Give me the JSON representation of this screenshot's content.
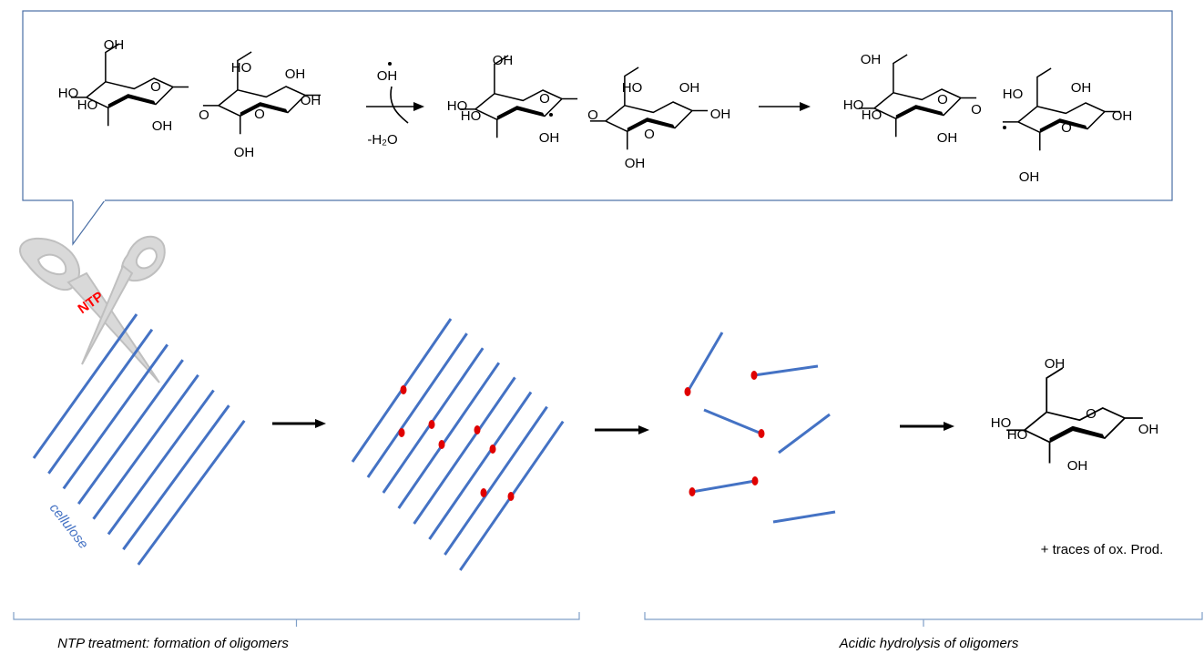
{
  "scheme": {
    "molecule_1": [
      "OH",
      "HO",
      "HO",
      "O",
      "OH",
      "O",
      "HO",
      "OH",
      "O",
      "OH",
      "OH"
    ],
    "reagent": {
      "radical": "OH",
      "loss": "-H₂O"
    },
    "molecule_2": [
      "OH",
      "HO",
      "HO",
      "O",
      "OH",
      "O",
      "HO",
      "OH",
      "O",
      "OH",
      "OH"
    ],
    "molecule_3": [
      "OH",
      "HO",
      "HO",
      "O",
      "O",
      "OH"
    ],
    "molecule_4": [
      "HO",
      "OH",
      "O",
      "OH",
      "OH"
    ]
  },
  "ntp_label": "NTP",
  "cellulose_label": "cellulose",
  "product": {
    "labels": [
      "OH",
      "HO",
      "HO",
      "O",
      "OH",
      "OH"
    ],
    "note": "+ traces of ox. Prod."
  },
  "stages": [
    "NTP treatment: formation of oligomers",
    "Acidic hydrolysis of oligomers"
  ]
}
